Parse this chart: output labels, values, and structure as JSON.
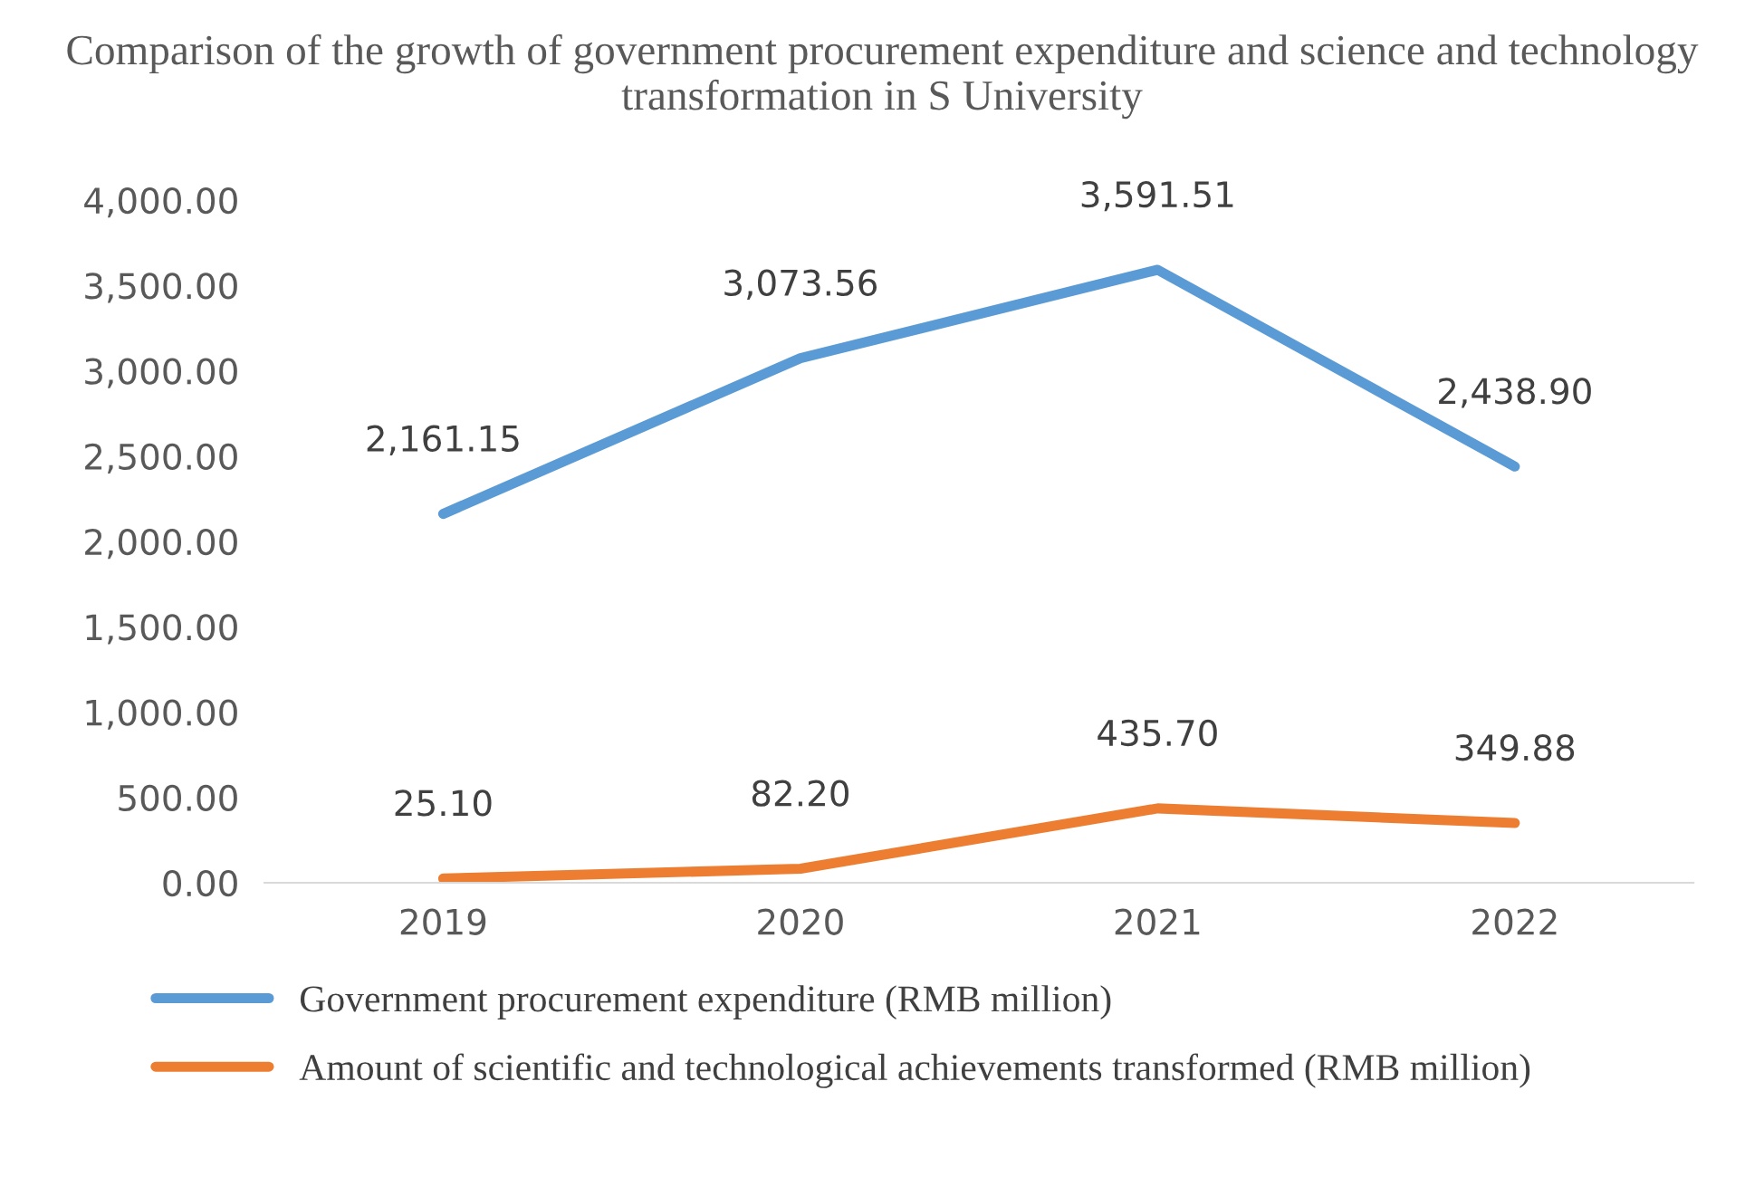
{
  "chart_data": {
    "type": "line",
    "title": "Comparison of the growth of government procurement expenditure and science and technology transformation in S University",
    "categories": [
      "2019",
      "2020",
      "2021",
      "2022"
    ],
    "series": [
      {
        "name": "Government procurement expenditure (RMB million)",
        "color": "#5b9bd5",
        "values": [
          2161.15,
          3073.56,
          3591.51,
          2438.9
        ],
        "value_labels": [
          "2,161.15",
          "3,073.56",
          "3,591.51",
          "2,438.90"
        ]
      },
      {
        "name": "Amount of scientific and technological achievements transformed (RMB million)",
        "color": "#ed7d31",
        "values": [
          25.1,
          82.2,
          435.7,
          349.88
        ],
        "value_labels": [
          "25.10",
          "82.20",
          "435.70",
          "349.88"
        ]
      }
    ],
    "ylim": [
      0,
      4000
    ],
    "yticks": [
      {
        "value": 0,
        "label": "0.00"
      },
      {
        "value": 500,
        "label": "500.00"
      },
      {
        "value": 1000,
        "label": "1,000.00"
      },
      {
        "value": 1500,
        "label": "1,500.00"
      },
      {
        "value": 2000,
        "label": "2,000.00"
      },
      {
        "value": 2500,
        "label": "2,500.00"
      },
      {
        "value": 3000,
        "label": "3,000.00"
      },
      {
        "value": 3500,
        "label": "3,500.00"
      },
      {
        "value": 4000,
        "label": "4,000.00"
      }
    ],
    "grid": false,
    "legend": "bottom",
    "marker": "none",
    "line_style": "solid"
  }
}
